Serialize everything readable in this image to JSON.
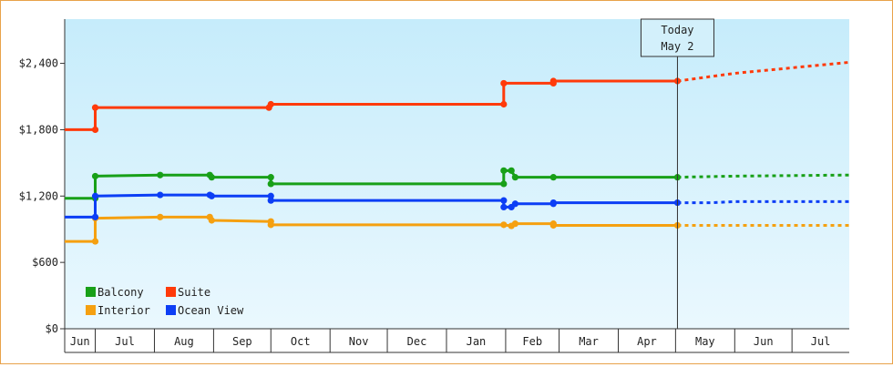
{
  "chart_data": {
    "type": "line",
    "y_ticks": [
      "$0",
      "$600",
      "$1,200",
      "$1,800",
      "$2,400"
    ],
    "y_tick_values": [
      0,
      600,
      1200,
      1800,
      2400
    ],
    "ylim": [
      0,
      2800
    ],
    "x_months": [
      "Jun",
      "Jul",
      "Aug",
      "Sep",
      "Oct",
      "Nov",
      "Dec",
      "Jan",
      "Feb",
      "Mar",
      "Apr",
      "May",
      "Jun",
      "Jul"
    ],
    "month_starts": [
      "2021-06-01",
      "2021-07-01",
      "2021-08-01",
      "2021-09-01",
      "2021-10-01",
      "2021-11-01",
      "2021-12-01",
      "2022-01-01",
      "2022-02-01",
      "2022-03-01",
      "2022-04-01",
      "2022-05-01",
      "2022-06-01",
      "2022-07-01",
      "2022-08-01"
    ],
    "xlim": [
      "2021-06-15",
      "2022-07-31"
    ],
    "today": {
      "line1": "Today",
      "line2": "May 2",
      "date": "2022-05-02"
    },
    "legend_position": "bottom-left",
    "series": [
      {
        "name": "Balcony",
        "color": "#18a018",
        "points": [
          [
            "2021-06-15",
            1180
          ],
          [
            "2021-07-01",
            1180
          ],
          [
            "2021-07-01",
            1380
          ],
          [
            "2021-08-04",
            1390
          ],
          [
            "2021-08-30",
            1390
          ],
          [
            "2021-08-31",
            1370
          ],
          [
            "2021-10-01",
            1370
          ],
          [
            "2021-10-01",
            1310
          ],
          [
            "2022-01-31",
            1310
          ],
          [
            "2022-01-31",
            1430
          ],
          [
            "2022-02-04",
            1430
          ],
          [
            "2022-02-06",
            1370
          ],
          [
            "2022-02-26",
            1370
          ],
          [
            "2022-05-02",
            1370
          ]
        ],
        "forecast": [
          [
            "2022-05-02",
            1370
          ],
          [
            "2022-06-01",
            1380
          ],
          [
            "2022-07-31",
            1390
          ]
        ]
      },
      {
        "name": "Suite",
        "color": "#ff3a0a",
        "points": [
          [
            "2021-06-15",
            1800
          ],
          [
            "2021-07-01",
            1800
          ],
          [
            "2021-07-01",
            2000
          ],
          [
            "2021-09-30",
            2000
          ],
          [
            "2021-10-01",
            2030
          ],
          [
            "2022-01-31",
            2030
          ],
          [
            "2022-01-31",
            2220
          ],
          [
            "2022-02-26",
            2220
          ],
          [
            "2022-02-26",
            2240
          ],
          [
            "2022-05-02",
            2240
          ]
        ],
        "forecast": [
          [
            "2022-05-02",
            2240
          ],
          [
            "2022-06-01",
            2310
          ],
          [
            "2022-07-31",
            2410
          ]
        ]
      },
      {
        "name": "Interior",
        "color": "#f5a010",
        "points": [
          [
            "2021-06-15",
            790
          ],
          [
            "2021-07-01",
            790
          ],
          [
            "2021-07-01",
            1000
          ],
          [
            "2021-08-04",
            1010
          ],
          [
            "2021-08-30",
            1010
          ],
          [
            "2021-08-31",
            980
          ],
          [
            "2021-10-01",
            970
          ],
          [
            "2021-10-01",
            940
          ],
          [
            "2022-01-31",
            940
          ],
          [
            "2022-02-04",
            930
          ],
          [
            "2022-02-06",
            950
          ],
          [
            "2022-02-26",
            950
          ],
          [
            "2022-02-26",
            935
          ],
          [
            "2022-05-02",
            935
          ]
        ],
        "forecast": [
          [
            "2022-05-02",
            935
          ],
          [
            "2022-07-31",
            935
          ]
        ]
      },
      {
        "name": "Ocean View",
        "color": "#0c3ef5",
        "points": [
          [
            "2021-06-15",
            1010
          ],
          [
            "2021-07-01",
            1010
          ],
          [
            "2021-07-01",
            1200
          ],
          [
            "2021-08-04",
            1210
          ],
          [
            "2021-08-30",
            1210
          ],
          [
            "2021-08-31",
            1200
          ],
          [
            "2021-10-01",
            1200
          ],
          [
            "2021-10-01",
            1160
          ],
          [
            "2022-01-31",
            1160
          ],
          [
            "2022-01-31",
            1100
          ],
          [
            "2022-02-04",
            1100
          ],
          [
            "2022-02-06",
            1130
          ],
          [
            "2022-02-26",
            1130
          ],
          [
            "2022-02-26",
            1140
          ],
          [
            "2022-05-02",
            1140
          ]
        ],
        "forecast": [
          [
            "2022-05-02",
            1140
          ],
          [
            "2022-05-20",
            1140
          ],
          [
            "2022-06-01",
            1150
          ],
          [
            "2022-07-31",
            1150
          ]
        ]
      }
    ]
  }
}
